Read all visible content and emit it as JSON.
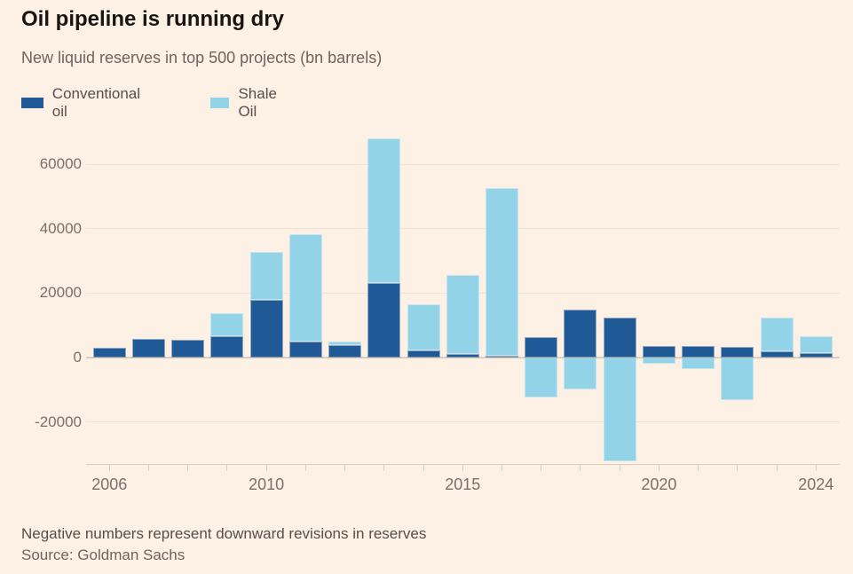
{
  "colors": {
    "background": "#fdf1e5",
    "conventional": "#205a96",
    "shale": "#92d3e8",
    "title_text": "#181512"
  },
  "chart_data": {
    "type": "bar",
    "stacked": true,
    "title": "Oil pipeline is running dry",
    "subtitle": "New liquid reserves in top 500 projects (bn barrels)",
    "categories": [
      "2006",
      "2007",
      "2008",
      "2009",
      "2010",
      "2011",
      "2012",
      "2013",
      "2014",
      "2015",
      "2016",
      "2017",
      "2018",
      "2019",
      "2020",
      "2021",
      "2022",
      "2023",
      "2024"
    ],
    "series": [
      {
        "name": "Conventional oil",
        "color": "#205a96",
        "values": [
          3000,
          5900,
          5600,
          6500,
          18000,
          4900,
          3900,
          23100,
          2200,
          1000,
          500,
          6200,
          14800,
          12300,
          3500,
          3500,
          3400,
          2000,
          1500
        ]
      },
      {
        "name": "Shale Oil",
        "color": "#92d3e8",
        "values": [
          0,
          0,
          0,
          7200,
          14700,
          33300,
          1100,
          44800,
          14300,
          24700,
          52000,
          -12300,
          -10000,
          -32200,
          -2000,
          -3600,
          -13200,
          10400,
          5200
        ]
      }
    ],
    "ylim": [
      -33000,
      70000
    ],
    "y_ticks": [
      60000,
      40000,
      20000,
      0,
      -20000
    ],
    "y_tick_labels": [
      "60000",
      "40000",
      "20000",
      "0",
      "-20000"
    ],
    "x_tick_label_years": [
      "2006",
      "2010",
      "2015",
      "2020",
      "2024"
    ],
    "grid": "horizontal-faint",
    "legend_position": "top-left",
    "footnote": "Negative numbers represent downward revisions in reserves",
    "source": "Source: Goldman Sachs"
  }
}
